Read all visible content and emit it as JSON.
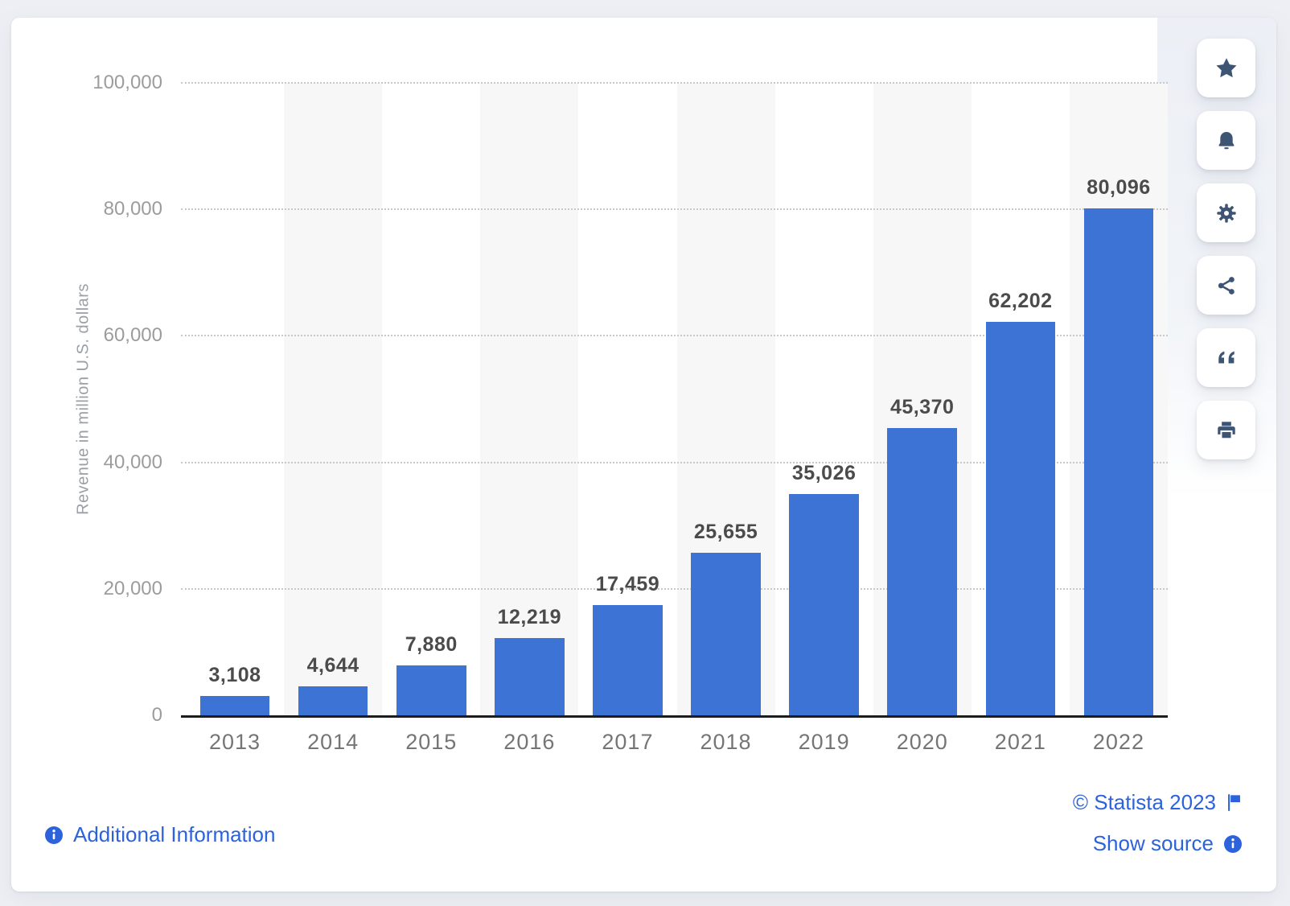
{
  "chart_data": {
    "type": "bar",
    "categories": [
      "2013",
      "2014",
      "2015",
      "2016",
      "2017",
      "2018",
      "2019",
      "2020",
      "2021",
      "2022"
    ],
    "values": [
      3108,
      4644,
      7880,
      12219,
      17459,
      25655,
      35026,
      45370,
      62202,
      80096
    ],
    "data_labels": [
      "3,108",
      "4,644",
      "7,880",
      "12,219",
      "17,459",
      "25,655",
      "35,026",
      "45,370",
      "62,202",
      "80,096"
    ],
    "title": "",
    "xlabel": "",
    "ylabel": "Revenue in million U.S. dollars",
    "ylim": [
      0,
      100000
    ],
    "y_ticks": [
      0,
      20000,
      40000,
      60000,
      80000,
      100000
    ],
    "y_tick_labels": [
      "0",
      "20,000",
      "40,000",
      "60,000",
      "80,000",
      "100,000"
    ],
    "grid": "horizontal-dotted",
    "legend": "none",
    "bar_color": "#3e73d6",
    "alt_band_color": "#f7f7f8"
  },
  "toolbar": {
    "buttons": [
      {
        "icon": "star-icon"
      },
      {
        "icon": "bell-icon"
      },
      {
        "icon": "gear-icon"
      },
      {
        "icon": "share-icon"
      },
      {
        "icon": "quote-icon"
      },
      {
        "icon": "print-icon"
      }
    ]
  },
  "footer": {
    "additional_information": "Additional Information",
    "copyright": "© Statista 2023",
    "show_source": "Show source"
  },
  "colors": {
    "bar": "#3e73d6",
    "band": "#f7f7f8",
    "link": "#2c63dc",
    "toolbar_icon": "#3e5475",
    "axis_line": "#1d1d1f",
    "tick_text": "#9c9c9c",
    "value_text": "#4b4b4b",
    "page_background": "#edeff4"
  }
}
